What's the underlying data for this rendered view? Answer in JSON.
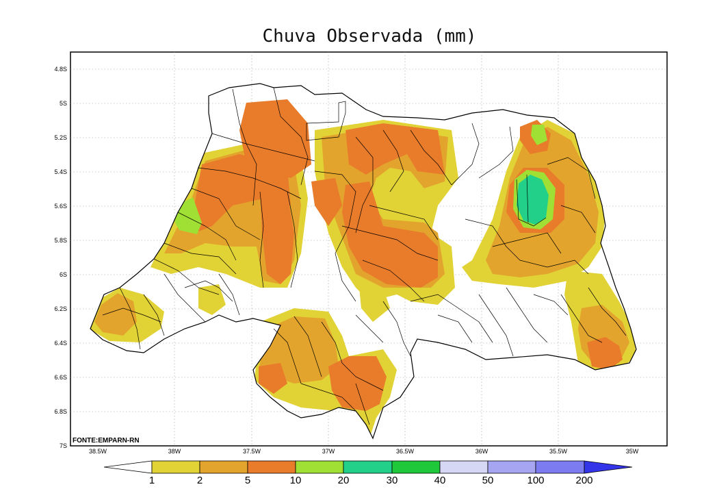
{
  "title": "Chuva Observada (mm)",
  "source": "FONTE:EMPARN-RN",
  "map": {
    "lon_range": [
      -38.5,
      -35.0
    ],
    "lat_range": [
      -7.0,
      -4.7
    ],
    "y_ticks": [
      "4.8S",
      "5S",
      "5.2S",
      "5.4S",
      "5.6S",
      "5.8S",
      "6S",
      "6.2S",
      "6.4S",
      "6.6S",
      "6.8S",
      "7S"
    ],
    "x_ticks": [
      "38.5W",
      "38W",
      "37.5W",
      "37W",
      "36.5W",
      "36W",
      "35.5W",
      "35W"
    ],
    "grid": "dotted"
  },
  "colorbar": {
    "labels": [
      "1",
      "2",
      "5",
      "10",
      "20",
      "30",
      "40",
      "50",
      "100",
      "200"
    ],
    "colors": [
      "#ffffff",
      "#e1d236",
      "#e2a42c",
      "#e97c2b",
      "#a0e034",
      "#22d08a",
      "#1fc83b",
      "#d6d6f5",
      "#a5a5f2",
      "#7c7cf0",
      "#3434e8"
    ]
  },
  "rainfall_classes": {
    "light": "#e1d236",
    "moderate": "#e2a42c",
    "heavy": "#e97c2b",
    "very_heavy": "#a0e034",
    "intense": "#22d08a"
  }
}
